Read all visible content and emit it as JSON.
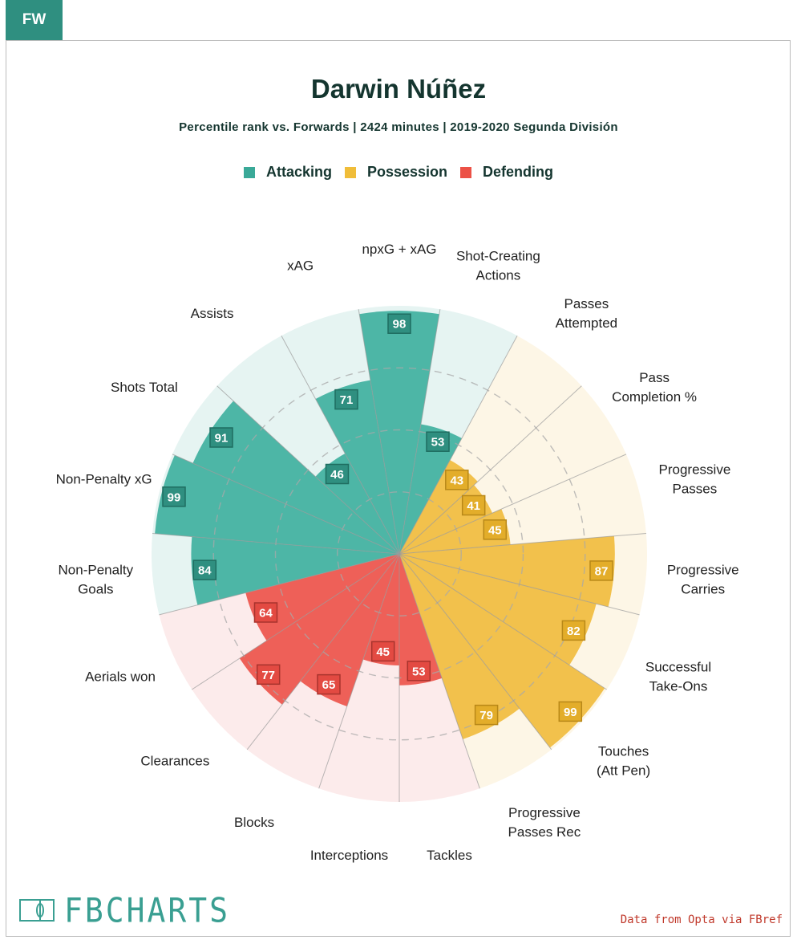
{
  "tab_label": "FW",
  "title": "Darwin Núñez",
  "subtitle": "Percentile rank vs. Forwards | 2424 minutes | 2019-2020 Segunda División",
  "legend": [
    {
      "label": "Attacking",
      "color": "#3aa998"
    },
    {
      "label": "Possession",
      "color": "#f0bd39"
    },
    {
      "label": "Defending",
      "color": "#ec5146"
    }
  ],
  "colors": {
    "Attacking": {
      "fill": "#4db6a6",
      "bg": "#e6f4f2",
      "box": "#2f8f80",
      "border": "#1f6d60"
    },
    "Possession": {
      "fill": "#f2c14c",
      "bg": "#fdf6e6",
      "box": "#e3ad2a",
      "border": "#b88818"
    },
    "Defending": {
      "fill": "#ee6058",
      "bg": "#fcebeb",
      "box": "#e34a42",
      "border": "#a8332d"
    }
  },
  "chart_data": {
    "type": "pie",
    "subtype": "polar-bar",
    "scale_max": 100,
    "categories": [
      {
        "label": "npxG + xAG",
        "value": 98,
        "group": "Attacking"
      },
      {
        "label": "Shot-Creating Actions",
        "value": 53,
        "group": "Attacking"
      },
      {
        "label": "Passes Attempted",
        "value": 43,
        "group": "Possession"
      },
      {
        "label": "Pass Completion %",
        "value": 41,
        "group": "Possession"
      },
      {
        "label": "Progressive Passes",
        "value": 45,
        "group": "Possession"
      },
      {
        "label": "Progressive Carries",
        "value": 87,
        "group": "Possession"
      },
      {
        "label": "Successful Take-Ons",
        "value": 82,
        "group": "Possession"
      },
      {
        "label": "Touches (Att Pen)",
        "value": 99,
        "group": "Possession"
      },
      {
        "label": "Progressive Passes Rec",
        "value": 79,
        "group": "Possession"
      },
      {
        "label": "Tackles",
        "value": 53,
        "group": "Defending"
      },
      {
        "label": "Interceptions",
        "value": 45,
        "group": "Defending"
      },
      {
        "label": "Blocks",
        "value": 65,
        "group": "Defending"
      },
      {
        "label": "Clearances",
        "value": 77,
        "group": "Defending"
      },
      {
        "label": "Aerials won",
        "value": 64,
        "group": "Defending"
      },
      {
        "label": "Non-Penalty Goals",
        "value": 84,
        "group": "Attacking"
      },
      {
        "label": "Non-Penalty xG",
        "value": 99,
        "group": "Attacking"
      },
      {
        "label": "Shots Total",
        "value": 91,
        "group": "Attacking"
      },
      {
        "label": "Assists",
        "value": 46,
        "group": "Attacking"
      },
      {
        "label": "xAG",
        "value": 71,
        "group": "Attacking"
      }
    ],
    "grid": true
  },
  "source": "Data from Opta via FBref",
  "logo_text": "FBCHARTS"
}
